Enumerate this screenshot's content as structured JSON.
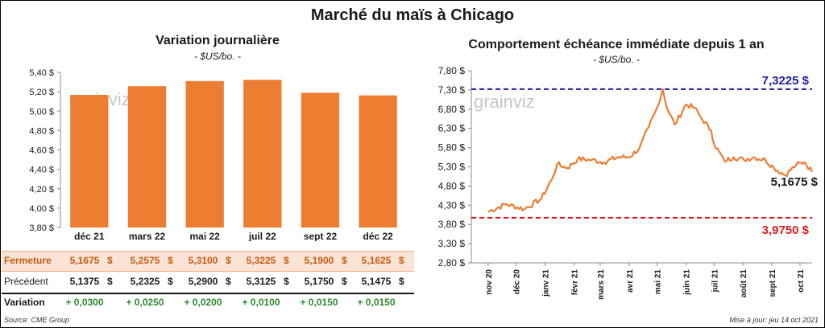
{
  "header": {
    "title": "Marché du maïs à Chicago"
  },
  "watermark": "grain viz",
  "left_panel": {
    "title": "Variation  journalière",
    "subtitle": "- $US/bo. -"
  },
  "right_panel": {
    "title": "Comportement  échéance immédiate depuis 1 an",
    "subtitle": "- $US/bo. -"
  },
  "chart_data": [
    {
      "type": "bar",
      "categories": [
        "déc 21",
        "mars 22",
        "mai 22",
        "juil 22",
        "sept 22",
        "déc 22"
      ],
      "values": [
        5.1675,
        5.2575,
        5.31,
        5.3225,
        5.19,
        5.1625
      ],
      "ylim": [
        3.8,
        5.4
      ],
      "yticks": [
        "3,80 $",
        "4,00 $",
        "4,20 $",
        "4,40 $",
        "4,60 $",
        "4,80 $",
        "5,00 $",
        "5,20 $",
        "5,40 $"
      ],
      "ytick_values": [
        3.8,
        4.0,
        4.2,
        4.4,
        4.6,
        4.8,
        5.0,
        5.2,
        5.4
      ],
      "color": "#ED7D31",
      "grid": false
    },
    {
      "type": "line",
      "x": [
        "2020-11-01",
        "2020-11-20",
        "2020-12-10",
        "2020-12-28",
        "2021-01-08",
        "2021-01-14",
        "2021-01-25",
        "2021-02-05",
        "2021-02-20",
        "2021-03-05",
        "2021-03-20",
        "2021-04-01",
        "2021-04-12",
        "2021-04-22",
        "2021-05-01",
        "2021-05-07",
        "2021-05-12",
        "2021-05-20",
        "2021-06-01",
        "2021-06-10",
        "2021-06-18",
        "2021-06-28",
        "2021-07-01",
        "2021-07-12",
        "2021-07-22",
        "2021-08-02",
        "2021-08-12",
        "2021-08-25",
        "2021-09-03",
        "2021-09-15",
        "2021-09-27",
        "2021-10-06",
        "2021-10-14"
      ],
      "y": [
        4.13,
        4.33,
        4.2,
        4.47,
        4.96,
        5.37,
        5.27,
        5.5,
        5.48,
        5.42,
        5.55,
        5.55,
        5.78,
        6.33,
        6.84,
        7.32,
        6.8,
        6.4,
        6.92,
        6.84,
        6.55,
        6.24,
        5.9,
        5.45,
        5.55,
        5.48,
        5.55,
        5.48,
        5.28,
        5.08,
        5.35,
        5.42,
        5.1675
      ],
      "xticks": [
        "nov 20",
        "déc 20",
        "janv 21",
        "févr 21",
        "mars 21",
        "avr 21",
        "mai 21",
        "juin 21",
        "juil 21",
        "août 21",
        "sept 21",
        "oct 21"
      ],
      "xtick_dates": [
        "2020-11-01",
        "2020-12-01",
        "2021-01-01",
        "2021-02-01",
        "2021-03-01",
        "2021-04-01",
        "2021-05-01",
        "2021-06-01",
        "2021-07-01",
        "2021-08-01",
        "2021-09-01",
        "2021-10-01"
      ],
      "ylim": [
        2.8,
        7.8
      ],
      "yticks": [
        "2,80 $",
        "3,30 $",
        "3,80 $",
        "4,30 $",
        "4,80 $",
        "5,30 $",
        "5,80 $",
        "6,30 $",
        "6,80 $",
        "7,30 $",
        "7,80 $"
      ],
      "ytick_values": [
        2.8,
        3.3,
        3.8,
        4.3,
        4.8,
        5.3,
        5.8,
        6.3,
        6.8,
        7.3,
        7.8
      ],
      "color": "#ED7D31",
      "reference_lines": [
        {
          "value": 7.3225,
          "label": "7,3225 $",
          "color": "#1F1FA8"
        },
        {
          "value": 3.975,
          "label": "3,9750 $",
          "color": "#E0181B"
        }
      ],
      "last_value_label": "5,1675 $",
      "grid": false
    }
  ],
  "table": {
    "rows": [
      {
        "label": "Fermeture",
        "values": [
          "5,1675",
          "5,2575",
          "5,3100",
          "5,3225",
          "5,1900",
          "5,1625"
        ],
        "unit": "$",
        "label_color": "#C55A11",
        "value_color": "#C55A11",
        "background": "#FBE4D5"
      },
      {
        "label": "Précédent",
        "values": [
          "5,1375",
          "5,2325",
          "5,2900",
          "5,3125",
          "5,1750",
          "5,1475"
        ],
        "unit": "$",
        "label_color": "#1a1a1a",
        "value_color": "#1a1a1a",
        "background": "#FFFFFF"
      },
      {
        "label": "Variation",
        "values": [
          "+ 0,0300",
          "+ 0,0250",
          "+ 0,0200",
          "+ 0,0100",
          "+ 0,0150",
          "+ 0,0150"
        ],
        "unit": "",
        "label_color": "#1a1a1a",
        "value_color": "#2E8B2E",
        "background": "#FFFFFF"
      }
    ]
  },
  "footer": {
    "source": "Source: CME Group",
    "updated": "Mise à jour: jeu 14 oct 2021"
  }
}
